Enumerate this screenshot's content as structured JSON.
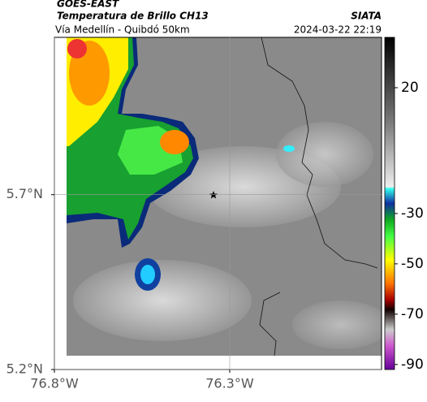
{
  "header": {
    "source": "GOES-EAST",
    "title": "Temperatura de Brillo CH13",
    "agency": "SIATA",
    "subtitle": "Vía Medellín - Quibdó 50km",
    "timestamp": "2024-03-22 22:19"
  },
  "map": {
    "xlim": [
      -76.8,
      -75.867
    ],
    "ylim": [
      5.2,
      6.15
    ],
    "xticks": [
      {
        "value": -76.8,
        "label": "76.8°W"
      },
      {
        "value": -76.3,
        "label": "76.3°W"
      }
    ],
    "yticks": [
      {
        "value": 5.7,
        "label": "5.7°N"
      },
      {
        "value": 5.2,
        "label": "5.2°N"
      }
    ],
    "grid": true,
    "colorbar": {
      "lim": [
        -92,
        40
      ],
      "ticks": [
        20,
        -30,
        -50,
        -70,
        -90
      ]
    }
  }
}
